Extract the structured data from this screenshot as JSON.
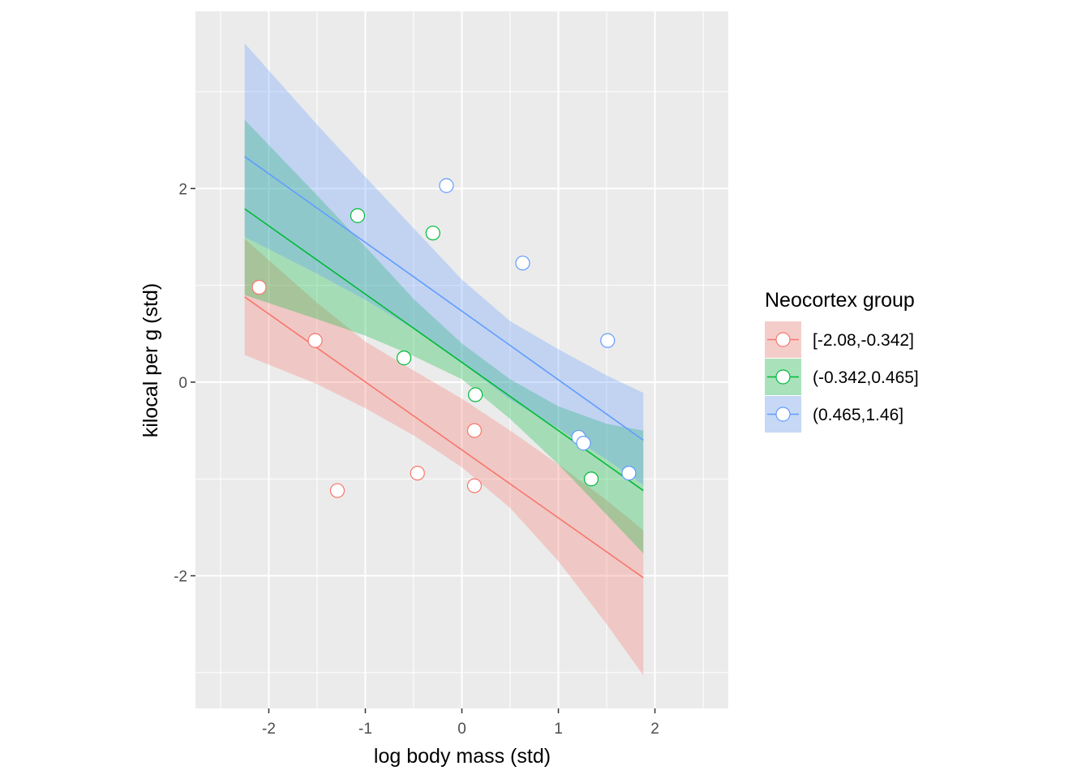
{
  "chart_data": {
    "type": "scatter",
    "xlabel": "log body mass (std)",
    "ylabel": "kilocal per g (std)",
    "xlim": [
      -2.76,
      2.76
    ],
    "ylim": [
      -3.37,
      3.83
    ],
    "x_ticks": [
      -2,
      -1,
      0,
      1,
      2
    ],
    "y_ticks": [
      -2,
      0,
      2
    ],
    "x_tick_labels": [
      "-2",
      "-1",
      "0",
      "1",
      "2"
    ],
    "y_tick_labels": [
      "-2",
      "0",
      "2"
    ],
    "grid": true,
    "legend": {
      "title": "Neocortex group",
      "position": "right"
    },
    "series": [
      {
        "name": "[-2.08,-0.342]",
        "color": "#F8766D",
        "points": [
          {
            "x": -2.1,
            "y": 0.98
          },
          {
            "x": -1.52,
            "y": 0.43
          },
          {
            "x": -1.29,
            "y": -1.12
          },
          {
            "x": -0.46,
            "y": -0.94
          },
          {
            "x": 0.13,
            "y": -0.5
          },
          {
            "x": 0.13,
            "y": -1.07
          }
        ],
        "fit": {
          "x": [
            -2.25,
            1.88
          ],
          "y": [
            0.88,
            -2.02
          ]
        },
        "band": {
          "x": [
            -2.25,
            -1.5,
            -1.0,
            -0.5,
            0.0,
            0.5,
            1.0,
            1.5,
            1.88
          ],
          "upper": [
            1.48,
            0.82,
            0.42,
            0.12,
            -0.17,
            -0.5,
            -0.85,
            -1.22,
            -1.53
          ],
          "lower": [
            0.28,
            -0.02,
            -0.27,
            -0.55,
            -0.88,
            -1.3,
            -1.85,
            -2.5,
            -3.03
          ]
        }
      },
      {
        "name": "(-0.342,0.465]",
        "color": "#00BA38",
        "points": [
          {
            "x": -1.08,
            "y": 1.72
          },
          {
            "x": -0.3,
            "y": 1.54
          },
          {
            "x": -0.6,
            "y": 0.25
          },
          {
            "x": 0.14,
            "y": -0.13
          },
          {
            "x": 1.34,
            "y": -1.0
          }
        ],
        "fit": {
          "x": [
            -2.25,
            1.88
          ],
          "y": [
            1.79,
            -1.12
          ]
        },
        "band": {
          "x": [
            -2.25,
            -1.5,
            -1.0,
            -0.5,
            0.0,
            0.5,
            1.0,
            1.5,
            1.88
          ],
          "upper": [
            2.71,
            1.93,
            1.4,
            0.86,
            0.4,
            0.03,
            -0.25,
            -0.43,
            -0.5
          ],
          "lower": [
            0.9,
            0.65,
            0.48,
            0.27,
            0.03,
            -0.38,
            -0.85,
            -1.37,
            -1.77
          ]
        }
      },
      {
        "name": "(0.465,1.46]",
        "color": "#619CFF",
        "points": [
          {
            "x": -0.16,
            "y": 2.03
          },
          {
            "x": 0.63,
            "y": 1.23
          },
          {
            "x": 1.51,
            "y": 0.43
          },
          {
            "x": 1.21,
            "y": -0.57
          },
          {
            "x": 1.26,
            "y": -0.63
          },
          {
            "x": 1.73,
            "y": -0.94
          }
        ],
        "fit": {
          "x": [
            -2.25,
            1.88
          ],
          "y": [
            2.33,
            -0.6
          ]
        },
        "band": {
          "x": [
            -2.25,
            -1.5,
            -1.0,
            -0.5,
            0.0,
            0.5,
            1.0,
            1.5,
            1.88
          ],
          "upper": [
            3.5,
            2.66,
            2.12,
            1.59,
            1.06,
            0.63,
            0.34,
            0.07,
            -0.11
          ],
          "lower": [
            1.5,
            1.12,
            0.85,
            0.55,
            0.2,
            -0.18,
            -0.48,
            -0.8,
            -1.06
          ]
        }
      }
    ]
  }
}
